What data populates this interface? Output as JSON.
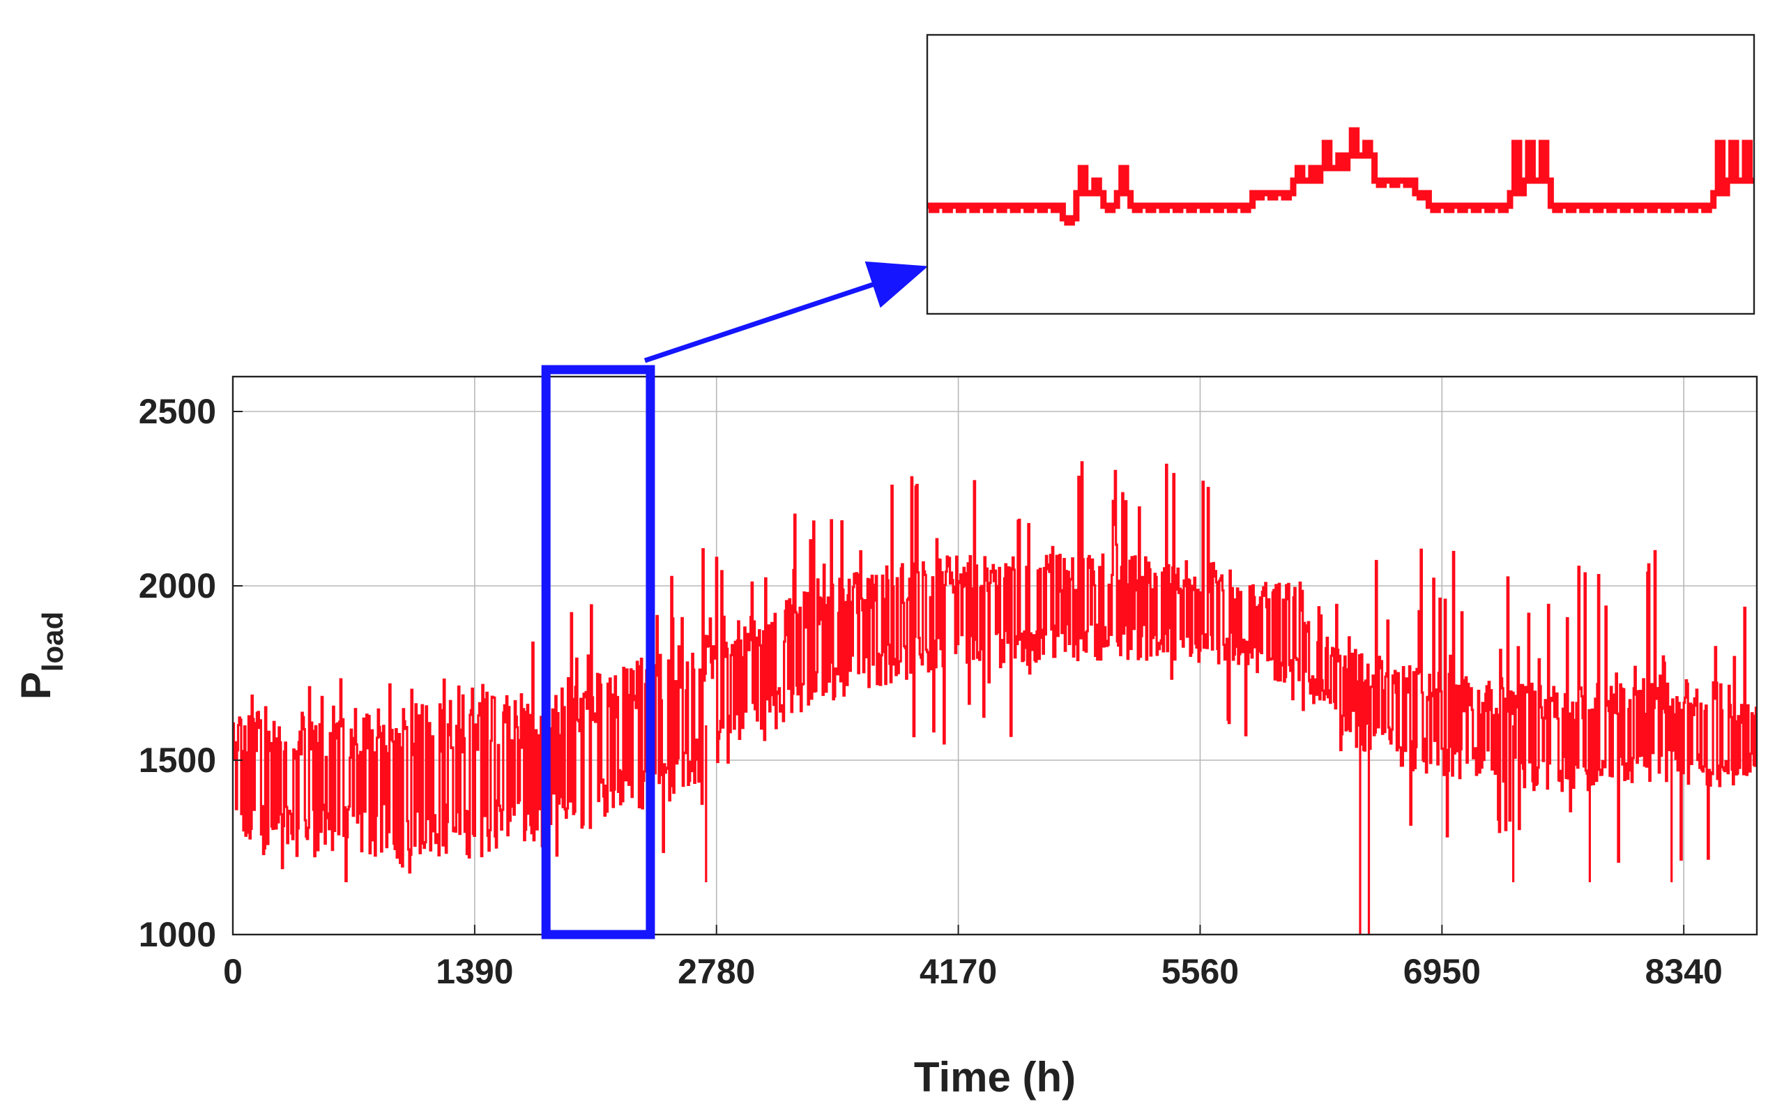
{
  "chart_data": {
    "type": "line",
    "xlabel": "Time (h)",
    "ylabel_main": "P",
    "ylabel_sub": "load",
    "xlim": [
      0,
      8760
    ],
    "ylim": [
      1000,
      2600
    ],
    "x_ticks": [
      0,
      1390,
      2780,
      4170,
      5560,
      6950,
      8340
    ],
    "y_ticks": [
      1000,
      1500,
      2000,
      2500
    ],
    "grid": true,
    "legend": "none",
    "colors": {
      "series": "#ff0b1a",
      "highlight": "#1515ff",
      "frame": "#222222",
      "grid": "#b8b8b8"
    },
    "series": [
      {
        "x": [
          0,
          720,
          1440,
          1800,
          2160,
          2520,
          2880,
          3240,
          3600,
          3960,
          4320,
          4680,
          5040,
          5400,
          5760,
          6120,
          6480,
          6840,
          7200,
          7560,
          7920,
          8280,
          8760
        ],
        "min": [
          1160,
          1150,
          1150,
          1150,
          1150,
          1150,
          1150,
          1300,
          1400,
          1480,
          1560,
          1580,
          1590,
          1580,
          1560,
          1520,
          1280,
          1300,
          1250,
          1220,
          1200,
          1180,
          1170
        ],
        "max": [
          1720,
          1740,
          1750,
          1930,
          2060,
          2080,
          2150,
          2220,
          2270,
          2370,
          2380,
          2370,
          2380,
          2360,
          2340,
          2200,
          2130,
          2120,
          2080,
          2070,
          2060,
          2150,
          2000
        ],
        "typical_low": [
          1230,
          1220,
          1220,
          1260,
          1320,
          1380,
          1500,
          1620,
          1700,
          1740,
          1760,
          1780,
          1790,
          1780,
          1760,
          1700,
          1520,
          1460,
          1420,
          1400,
          1400,
          1420,
          1420
        ],
        "typical_high": [
          1650,
          1660,
          1680,
          1700,
          1760,
          1820,
          1900,
          1980,
          2040,
          2080,
          2090,
          2090,
          2090,
          2080,
          2060,
          2000,
          1820,
          1760,
          1740,
          1720,
          1720,
          1740,
          1700
        ],
        "dips": [
          [
            6480,
            1000
          ],
          [
            6530,
            1000
          ],
          [
            2720,
            1150
          ],
          [
            7360,
            1150
          ],
          [
            7800,
            1150
          ],
          [
            8270,
            1150
          ]
        ]
      }
    ],
    "highlight_window": {
      "x": [
        1800,
        2400
      ],
      "y": [
        1000,
        2600
      ]
    },
    "inset": {
      "x_range": [
        1800,
        2400
      ],
      "segment_levels": [
        0,
        0,
        0,
        0,
        0,
        0,
        0,
        0,
        0,
        0,
        -1,
        1,
        1,
        0,
        1,
        0,
        0,
        0,
        0,
        0,
        0,
        0,
        0,
        0,
        1,
        1,
        1,
        2,
        2,
        3,
        3,
        4,
        4,
        2,
        2,
        2,
        1,
        0,
        0,
        0,
        0,
        0,
        0,
        1,
        2,
        2,
        0,
        0,
        0,
        0,
        0,
        0,
        0,
        0,
        0,
        0,
        0,
        0,
        1,
        2,
        2
      ],
      "segment_peaks": [
        0,
        0,
        0,
        0,
        0,
        0,
        0,
        0,
        0,
        0,
        0,
        3,
        2,
        0,
        3,
        0,
        0,
        0,
        0,
        0,
        0,
        0,
        0,
        0,
        0,
        0,
        0,
        3,
        3,
        5,
        4,
        6,
        5,
        0,
        0,
        0,
        0,
        0,
        0,
        0,
        0,
        0,
        0,
        5,
        5,
        5,
        0,
        0,
        0,
        0,
        0,
        0,
        0,
        0,
        0,
        0,
        0,
        0,
        5,
        5,
        5
      ]
    }
  }
}
